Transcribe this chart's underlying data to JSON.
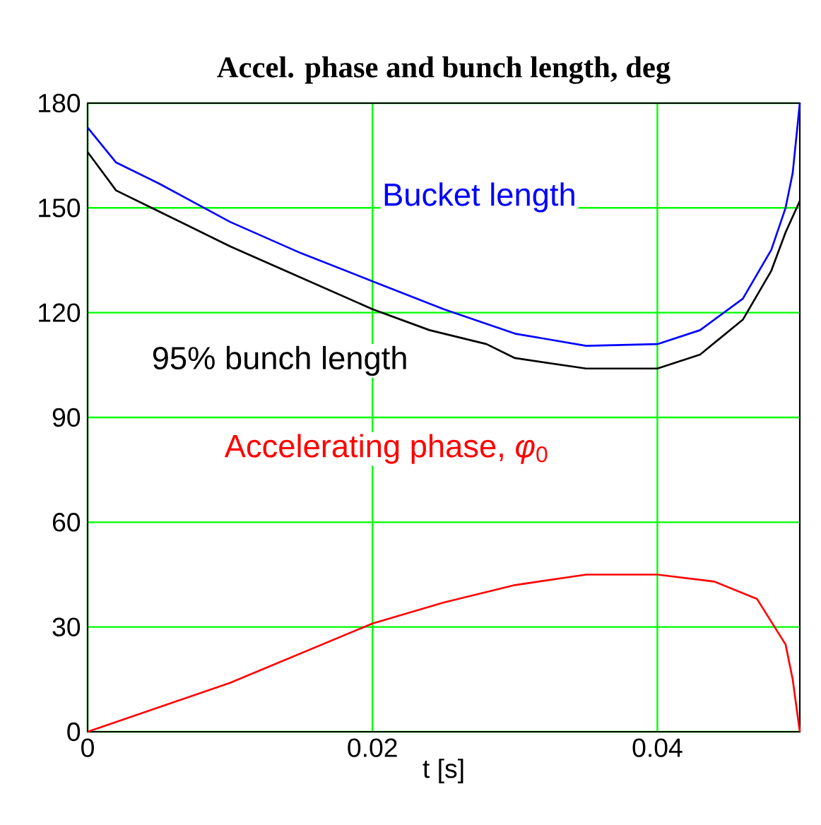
{
  "chart_data": {
    "type": "line",
    "title": "Accel. phase and bunch length, deg",
    "xlabel": "t [s]",
    "xlim": [
      0,
      0.05
    ],
    "ylim": [
      0,
      180
    ],
    "xticks": [
      0,
      0.02,
      0.04
    ],
    "yticks": [
      0,
      30,
      60,
      90,
      120,
      150,
      180
    ],
    "grid": true,
    "marker": "none",
    "line_style": "solid",
    "series": [
      {
        "name": "Bucket length",
        "color": "#0000ff",
        "x": [
          0,
          0.002,
          0.005,
          0.01,
          0.015,
          0.02,
          0.025,
          0.03,
          0.035,
          0.04,
          0.043,
          0.046,
          0.048,
          0.049,
          0.0495,
          0.05
        ],
        "values": [
          173,
          163,
          157,
          146,
          137,
          129,
          121,
          114,
          110.5,
          111,
          115,
          124,
          138,
          150,
          160,
          180
        ]
      },
      {
        "name": "95% bunch length",
        "color": "#000000",
        "x": [
          0,
          0.002,
          0.005,
          0.01,
          0.015,
          0.02,
          0.024,
          0.028,
          0.03,
          0.035,
          0.04,
          0.043,
          0.046,
          0.048,
          0.049,
          0.05
        ],
        "values": [
          166,
          155,
          149,
          139,
          130,
          121,
          115,
          111,
          107,
          104,
          104,
          108,
          118,
          132,
          143,
          152
        ]
      },
      {
        "name": "Accelerating phase, *φ*$_{0}$",
        "color": "#ff0000",
        "x": [
          0,
          0.01,
          0.02,
          0.025,
          0.03,
          0.035,
          0.04,
          0.044,
          0.047,
          0.049,
          0.0495,
          0.05
        ],
        "values": [
          0,
          14,
          31,
          37,
          42,
          45,
          45,
          43,
          38,
          25,
          15,
          0
        ]
      }
    ]
  }
}
